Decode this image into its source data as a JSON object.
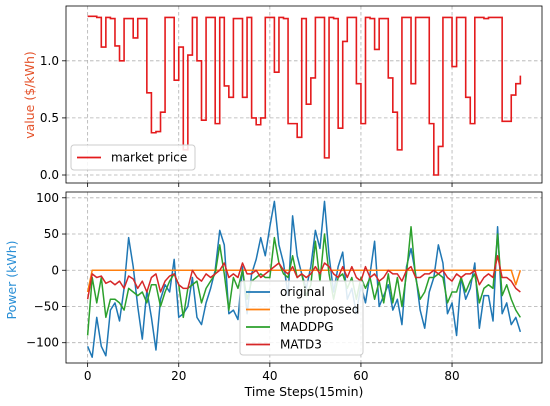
{
  "chart_data": [
    {
      "type": "line",
      "step": true,
      "ylabel": "value ($/kWh)",
      "ylabel_color": "#e4522a",
      "xlim": [
        -4.75,
        99.75
      ],
      "ylim": [
        -0.07,
        1.48
      ],
      "yticks": [
        "0.0",
        "0.5",
        "1.0"
      ],
      "ytick_values": [
        0,
        0.5,
        1.0
      ],
      "grid": true,
      "legend_position": "lower-left",
      "series": [
        {
          "name": "market price",
          "color": "#e41a1c",
          "x": [
            0,
            1,
            2,
            3,
            4,
            5,
            6,
            7,
            8,
            9,
            10,
            11,
            12,
            13,
            14,
            15,
            16,
            17,
            18,
            19,
            20,
            21,
            22,
            23,
            24,
            25,
            26,
            27,
            28,
            29,
            30,
            31,
            32,
            33,
            34,
            35,
            36,
            37,
            38,
            39,
            40,
            41,
            42,
            43,
            44,
            45,
            46,
            47,
            48,
            49,
            50,
            51,
            52,
            53,
            54,
            55,
            56,
            57,
            58,
            59,
            60,
            61,
            62,
            63,
            64,
            65,
            66,
            67,
            68,
            69,
            70,
            71,
            72,
            73,
            74,
            75,
            76,
            77,
            78,
            79,
            80,
            81,
            82,
            83,
            84,
            85,
            86,
            87,
            88,
            89,
            90,
            91,
            92,
            93,
            94,
            95
          ],
          "values": [
            1.39,
            1.39,
            1.38,
            1.12,
            1.38,
            1.37,
            1.13,
            1.0,
            1.37,
            1.37,
            1.2,
            1.37,
            1.37,
            0.72,
            0.37,
            0.38,
            0.55,
            1.38,
            1.38,
            0.83,
            1.12,
            0.22,
            1.05,
            1.38,
            1.0,
            0.48,
            1.38,
            1.38,
            0.45,
            1.38,
            0.78,
            0.68,
            1.37,
            1.37,
            0.68,
            1.38,
            0.5,
            0.44,
            0.5,
            1.38,
            1.38,
            0.9,
            1.38,
            1.37,
            0.45,
            0.45,
            0.33,
            1.37,
            0.62,
            0.85,
            1.38,
            1.38,
            0.15,
            1.38,
            1.37,
            0.41,
            1.17,
            1.38,
            1.38,
            0.8,
            0.45,
            1.38,
            1.37,
            1.1,
            1.37,
            1.37,
            0.85,
            0.55,
            0.22,
            1.38,
            1.38,
            0.8,
            1.38,
            1.38,
            1.38,
            0.45,
            0.0,
            0.25,
            1.38,
            1.38,
            0.95,
            1.38,
            1.38,
            0.68,
            0.45,
            1.38,
            1.38,
            1.37,
            1.38,
            1.38,
            1.38,
            0.47,
            0.47,
            0.7,
            0.8,
            0.87
          ]
        }
      ]
    },
    {
      "type": "line",
      "xlabel": "Time Steps(15min)",
      "ylabel": "Power (kWh)",
      "ylabel_color": "#2a8fd6",
      "xlim": [
        -4.75,
        99.75
      ],
      "ylim": [
        -128,
        108
      ],
      "xticks": [
        "0",
        "20",
        "40",
        "60",
        "80"
      ],
      "xtick_values": [
        0,
        20,
        40,
        60,
        80
      ],
      "yticks": [
        "−100",
        "−50",
        "0",
        "50",
        "100"
      ],
      "ytick_values": [
        -100,
        -50,
        0,
        50,
        100
      ],
      "grid": true,
      "legend_position": "bottom-center",
      "series": [
        {
          "name": "original",
          "color": "#1f77b4",
          "values": [
            -105,
            -120,
            -65,
            -105,
            -118,
            -55,
            -45,
            -70,
            -25,
            45,
            5,
            -50,
            -95,
            -28,
            -65,
            -110,
            -40,
            -20,
            -30,
            15,
            -65,
            -60,
            -50,
            -10,
            -65,
            -75,
            -45,
            -25,
            0,
            55,
            35,
            -60,
            -55,
            -68,
            5,
            -60,
            -5,
            15,
            45,
            20,
            60,
            95,
            35,
            10,
            -35,
            75,
            20,
            -5,
            -25,
            5,
            55,
            30,
            95,
            20,
            -30,
            5,
            25,
            -40,
            -25,
            -60,
            -20,
            -45,
            -5,
            40,
            -50,
            -35,
            -20,
            -55,
            -40,
            -75,
            5,
            30,
            -5,
            -55,
            -80,
            -30,
            -10,
            35,
            10,
            -60,
            -45,
            -90,
            -10,
            -40,
            -25,
            10,
            -80,
            -35,
            -35,
            -70,
            60,
            -60,
            -45,
            -75,
            -65,
            -85
          ]
        },
        {
          "name": "the proposed",
          "color": "#ff7f0e",
          "values": [
            -30,
            0,
            0,
            0,
            0,
            0,
            0,
            0,
            0,
            0,
            0,
            0,
            0,
            0,
            0,
            0,
            0,
            0,
            0,
            0,
            0,
            0,
            0,
            0,
            0,
            0,
            0,
            0,
            0,
            0,
            0,
            0,
            0,
            0,
            0,
            0,
            0,
            0,
            0,
            0,
            0,
            0,
            0,
            0,
            0,
            0,
            0,
            0,
            0,
            0,
            0,
            0,
            0,
            0,
            0,
            0,
            0,
            0,
            0,
            0,
            0,
            0,
            0,
            0,
            0,
            0,
            0,
            0,
            0,
            0,
            0,
            0,
            0,
            0,
            0,
            0,
            0,
            0,
            0,
            0,
            0,
            0,
            0,
            0,
            0,
            0,
            0,
            0,
            0,
            0,
            0,
            0,
            0,
            0,
            -20,
            0
          ]
        },
        {
          "name": "MADDPG",
          "color": "#2ca02c",
          "values": [
            -90,
            -10,
            -45,
            -10,
            -65,
            -40,
            -40,
            -45,
            -55,
            -25,
            -30,
            -35,
            -30,
            -45,
            -20,
            -20,
            -50,
            -30,
            -15,
            -5,
            -20,
            -65,
            -25,
            -20,
            -15,
            -45,
            -25,
            -15,
            -5,
            35,
            -5,
            -55,
            -10,
            -25,
            0,
            -40,
            -15,
            -10,
            -5,
            -10,
            -10,
            45,
            10,
            -5,
            -10,
            20,
            -10,
            -5,
            -35,
            -20,
            40,
            -15,
            50,
            -5,
            -40,
            -10,
            -5,
            -25,
            -10,
            -40,
            -10,
            -25,
            -10,
            -40,
            -15,
            -45,
            -5,
            -45,
            -10,
            -50,
            -5,
            60,
            -10,
            -40,
            -30,
            -10,
            -10,
            -5,
            -10,
            -45,
            -30,
            -30,
            -10,
            -30,
            -15,
            -5,
            -45,
            -25,
            -20,
            -25,
            50,
            -35,
            -20,
            -40,
            -55,
            -65
          ]
        },
        {
          "name": "MATD3",
          "color": "#d62728",
          "values": [
            -40,
            -5,
            -10,
            -8,
            -18,
            -15,
            -20,
            -15,
            -25,
            -8,
            -12,
            -25,
            -15,
            -30,
            -10,
            -5,
            -30,
            -15,
            -8,
            -5,
            -20,
            -25,
            -25,
            0,
            -10,
            -15,
            -5,
            -10,
            -5,
            0,
            10,
            -10,
            -5,
            -10,
            10,
            -5,
            -5,
            0,
            -10,
            -5,
            0,
            5,
            10,
            0,
            -5,
            5,
            -10,
            -5,
            -10,
            -5,
            5,
            -5,
            10,
            5,
            -5,
            -10,
            5,
            -10,
            5,
            -10,
            -15,
            5,
            -10,
            -5,
            -15,
            -10,
            0,
            -5,
            -5,
            -15,
            0,
            5,
            -10,
            -10,
            -5,
            -5,
            0,
            -5,
            0,
            -10,
            -15,
            -5,
            -10,
            -5,
            -5,
            0,
            -20,
            -10,
            -5,
            -10,
            20,
            -10,
            -10,
            -15,
            -25,
            -30
          ]
        }
      ]
    }
  ]
}
